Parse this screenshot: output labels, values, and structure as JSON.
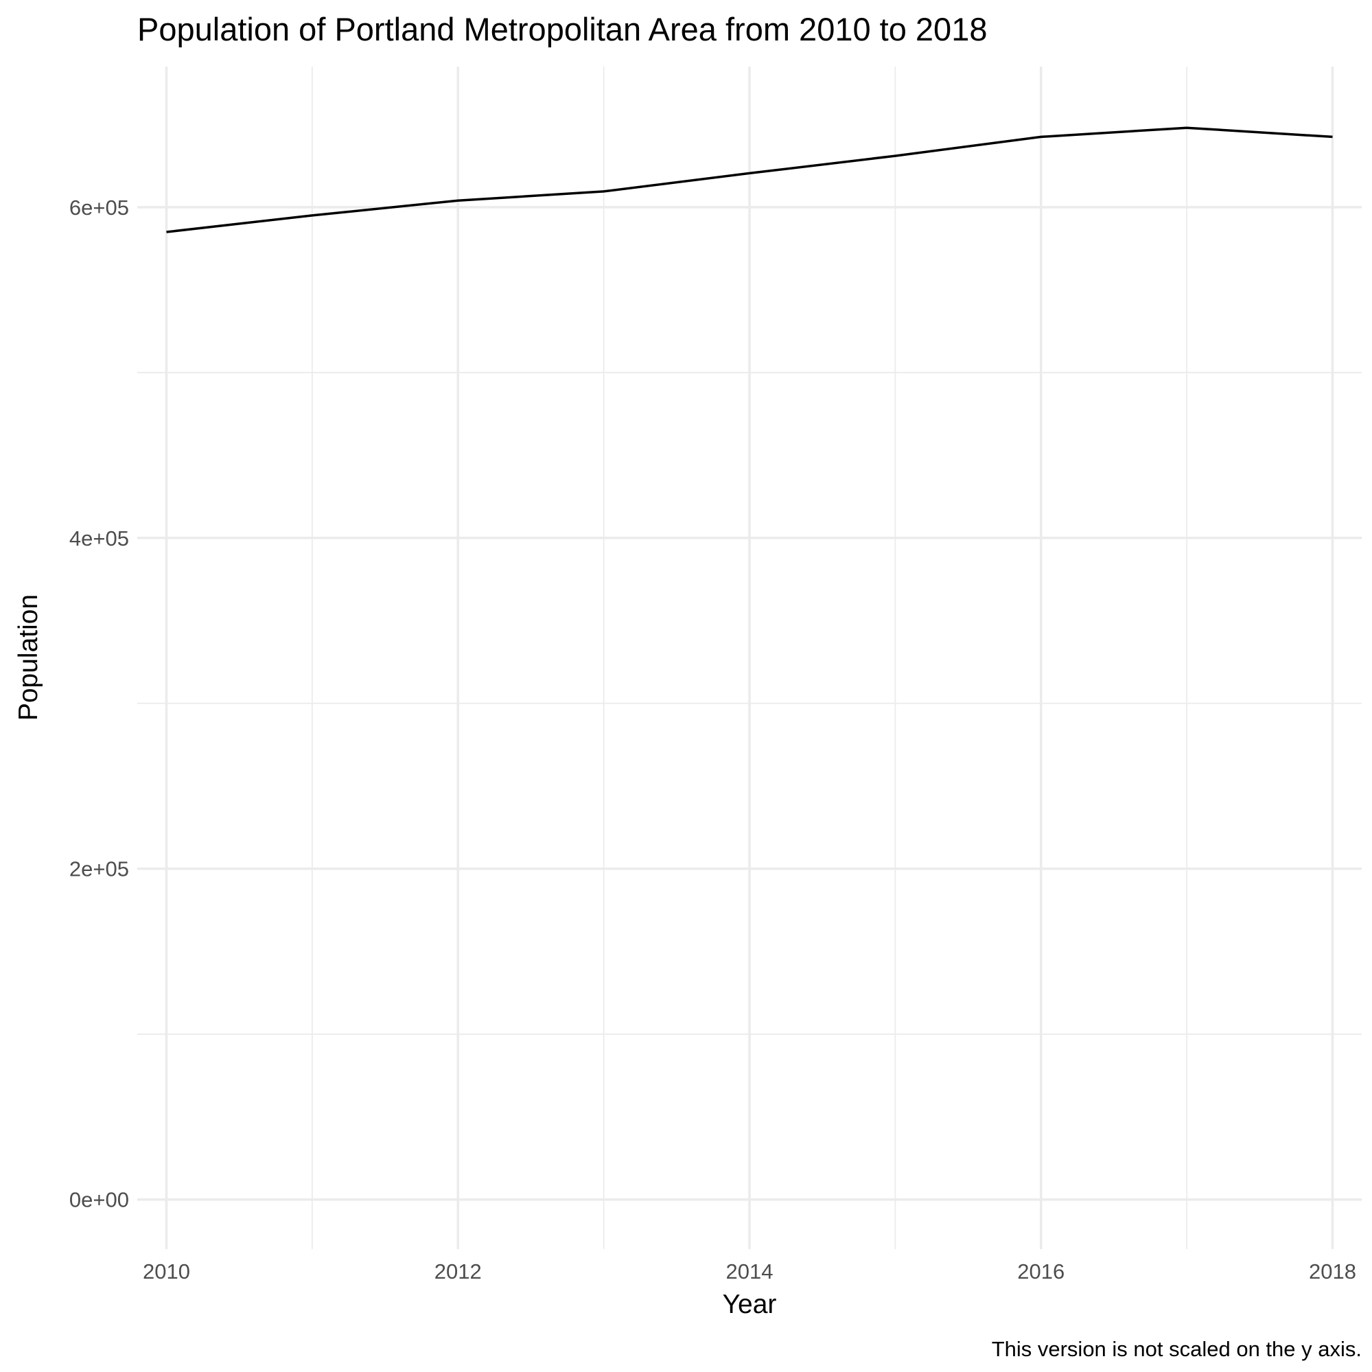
{
  "chart_data": {
    "type": "line",
    "title": "Population of Portland Metropolitan Area from 2010 to 2018",
    "xlabel": "Year",
    "ylabel": "Population",
    "caption": "This version is not scaled on the y axis.",
    "x": [
      2010,
      2011,
      2012,
      2013,
      2014,
      2015,
      2016,
      2017,
      2018
    ],
    "series": [
      {
        "values": [
          585000,
          595000,
          604000,
          609500,
          620500,
          631000,
          642500,
          648000,
          642500
        ]
      }
    ],
    "xlim": [
      2009.8,
      2018.2
    ],
    "ylim": [
      -30000,
      685000
    ],
    "x_ticks": [
      2010,
      2012,
      2014,
      2016,
      2018
    ],
    "x_tick_labels": [
      "2010",
      "2012",
      "2014",
      "2016",
      "2018"
    ],
    "x_minor_ticks": [
      2011,
      2013,
      2015,
      2017
    ],
    "y_ticks": [
      0,
      200000,
      400000,
      600000
    ],
    "y_tick_labels": [
      "0e+00",
      "2e+05",
      "4e+05",
      "6e+05"
    ],
    "y_minor_ticks": [
      100000,
      300000,
      500000
    ],
    "grid": true,
    "legend": "none",
    "line_color": "#000000"
  }
}
